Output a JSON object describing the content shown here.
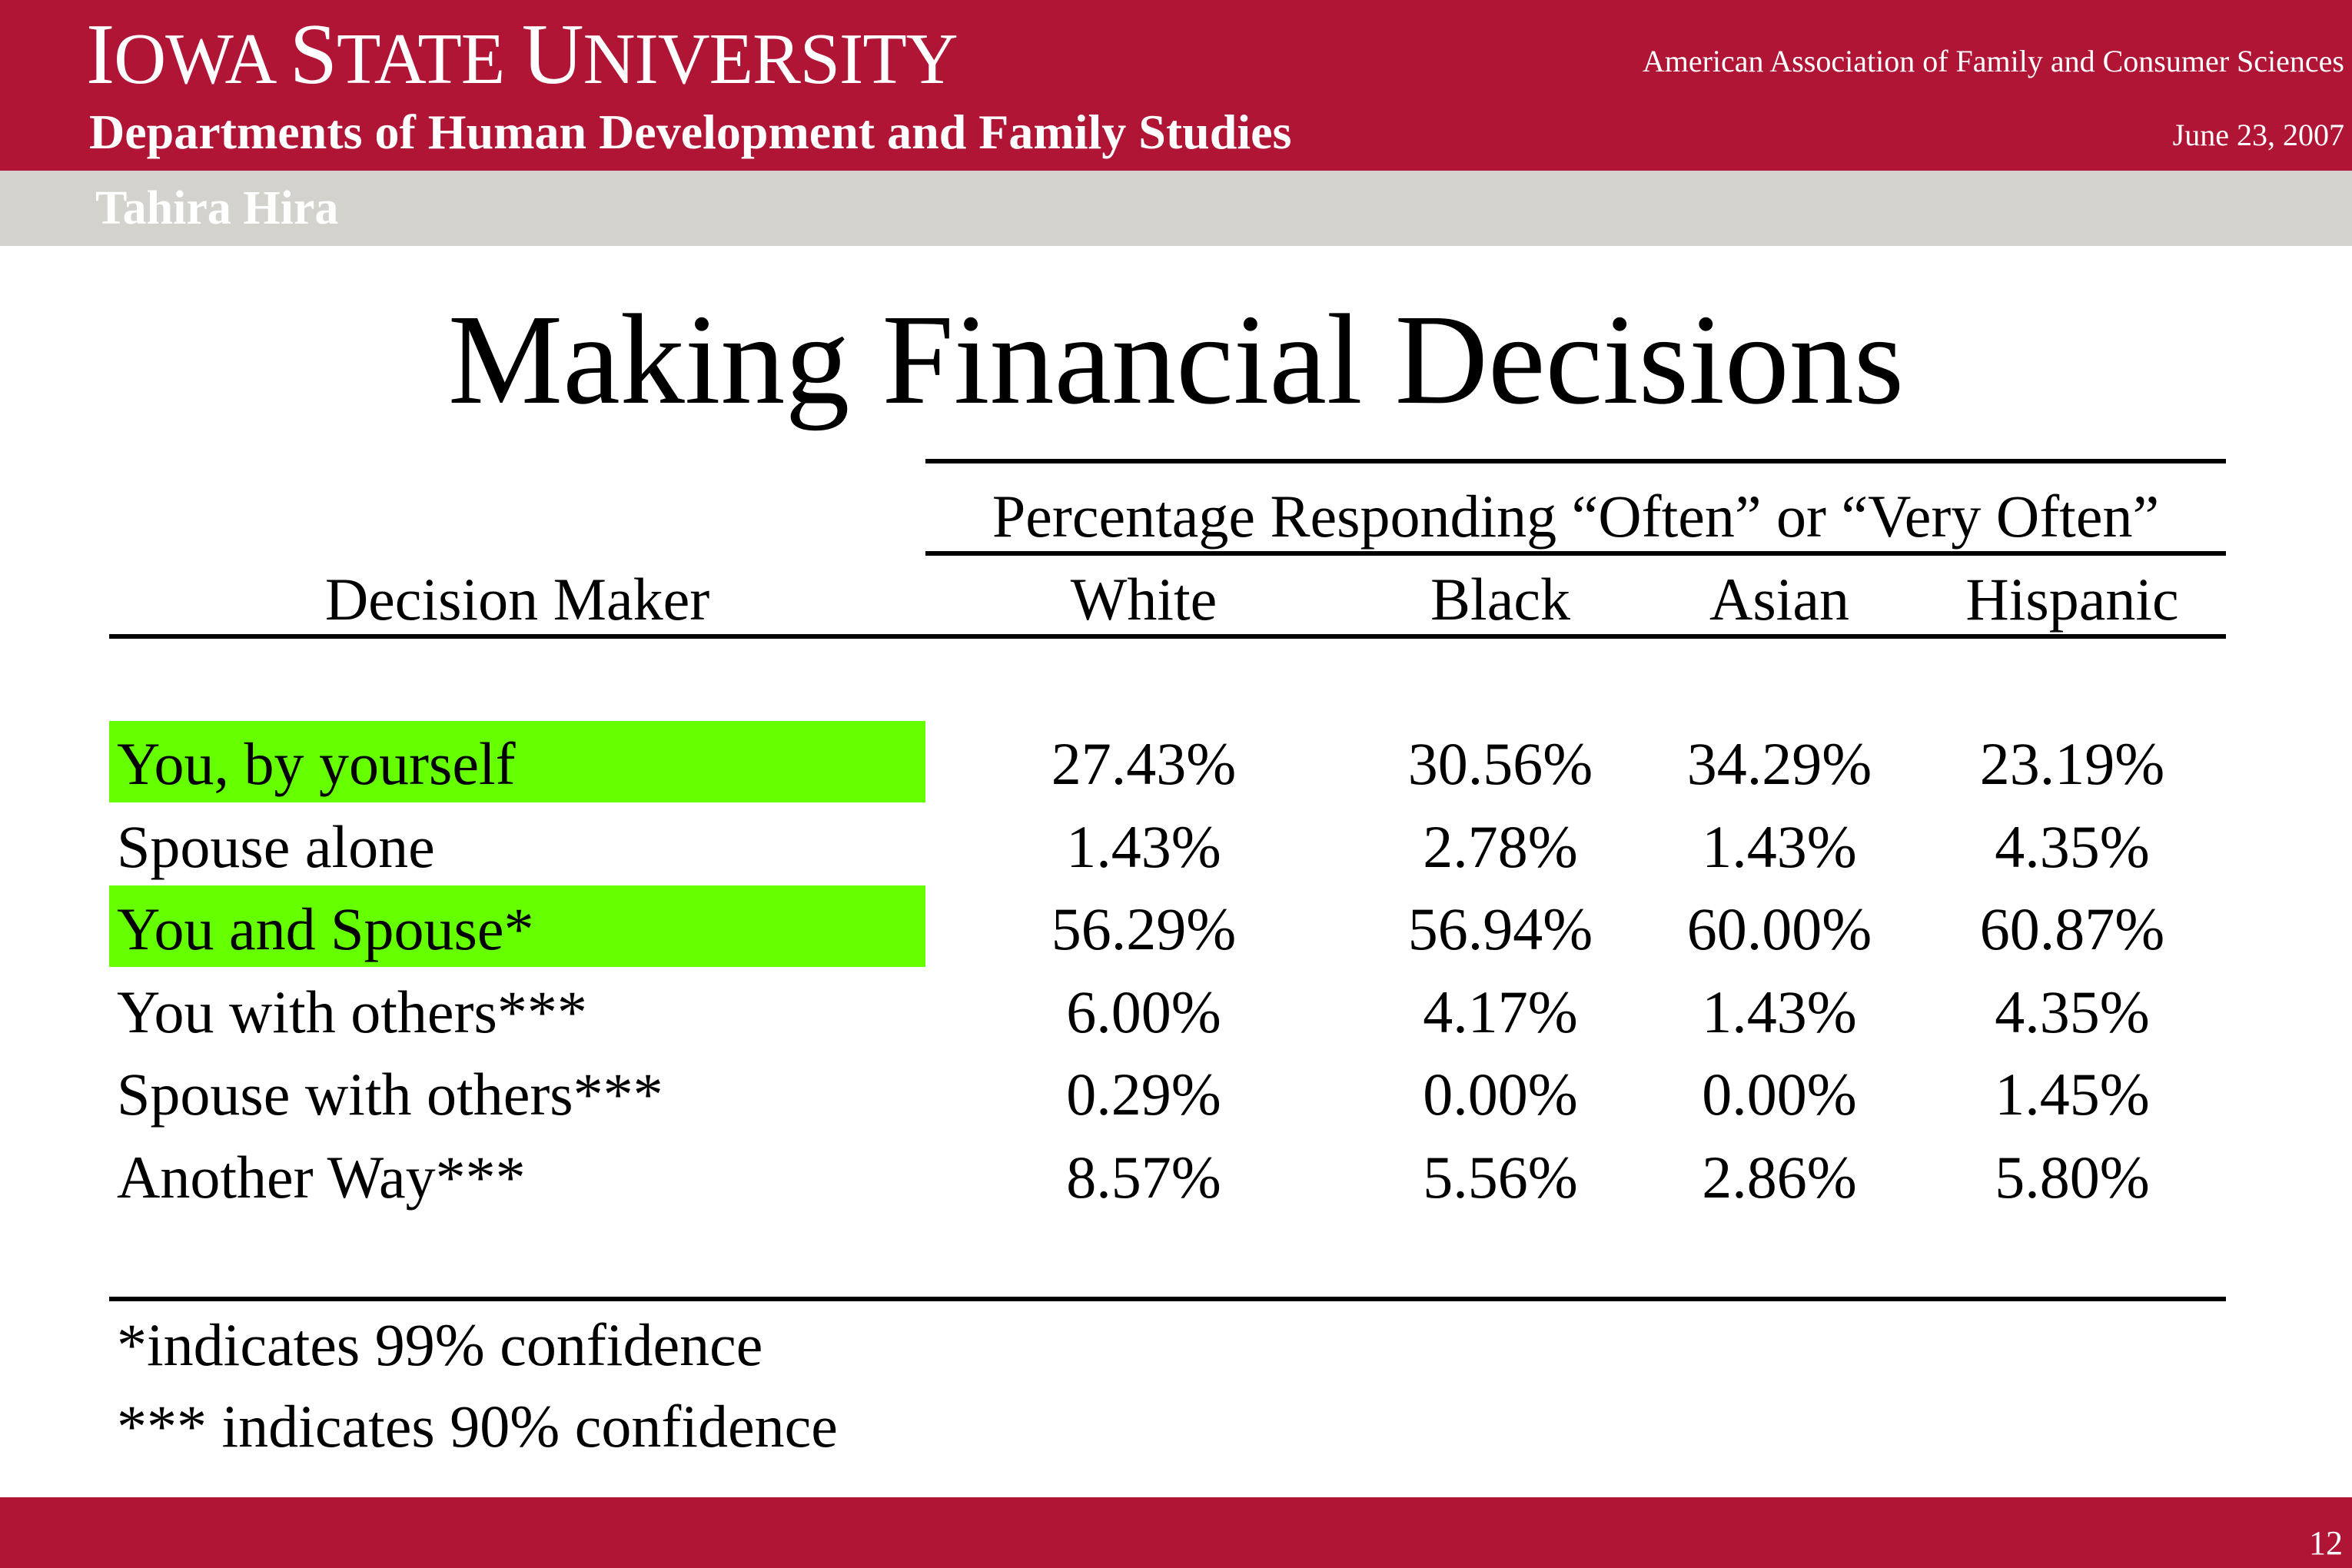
{
  "header": {
    "university_initial_1": "I",
    "university_rest_1": "OWA ",
    "university_initial_2": "S",
    "university_rest_2": "TATE ",
    "university_initial_3": "U",
    "university_rest_3": "NIVERSITY",
    "department": "Departments of Human Development and Family Studies",
    "conference": "American Association of Family and Consumer Sciences",
    "date": "June 23, 2007"
  },
  "subheader": {
    "author": "Tahira Hira"
  },
  "slide": {
    "title": "Making Financial Decisions"
  },
  "table": {
    "group_header": "Percentage Responding “Often” or “Very Often”",
    "row_header": "Decision Maker",
    "columns": [
      "White",
      "Black",
      "Asian",
      "Hispanic"
    ],
    "rows": [
      {
        "label": "You, by yourself",
        "highlighted": true,
        "values": [
          "27.43%",
          "30.56%",
          "34.29%",
          "23.19%"
        ]
      },
      {
        "label": "Spouse alone",
        "highlighted": false,
        "values": [
          "1.43%",
          "2.78%",
          "1.43%",
          "4.35%"
        ]
      },
      {
        "label": "You and Spouse*",
        "highlighted": true,
        "values": [
          "56.29%",
          "56.94%",
          "60.00%",
          "60.87%"
        ]
      },
      {
        "label": "You with others***",
        "highlighted": false,
        "values": [
          "6.00%",
          "4.17%",
          "1.43%",
          "4.35%"
        ]
      },
      {
        "label": "Spouse with others***",
        "highlighted": false,
        "values": [
          "0.29%",
          "0.00%",
          "0.00%",
          "1.45%"
        ]
      },
      {
        "label": "Another Way***",
        "highlighted": false,
        "values": [
          "8.57%",
          "5.56%",
          "2.86%",
          "5.80%"
        ]
      }
    ],
    "highlight_color": "#66ff00"
  },
  "notes": [
    "*indicates 99% confidence",
    "*** indicates 90% confidence"
  ],
  "footer": {
    "page_number": "12"
  },
  "colors": {
    "brand_red": "#b11536",
    "subbar_gray": "#d3d2cd"
  }
}
